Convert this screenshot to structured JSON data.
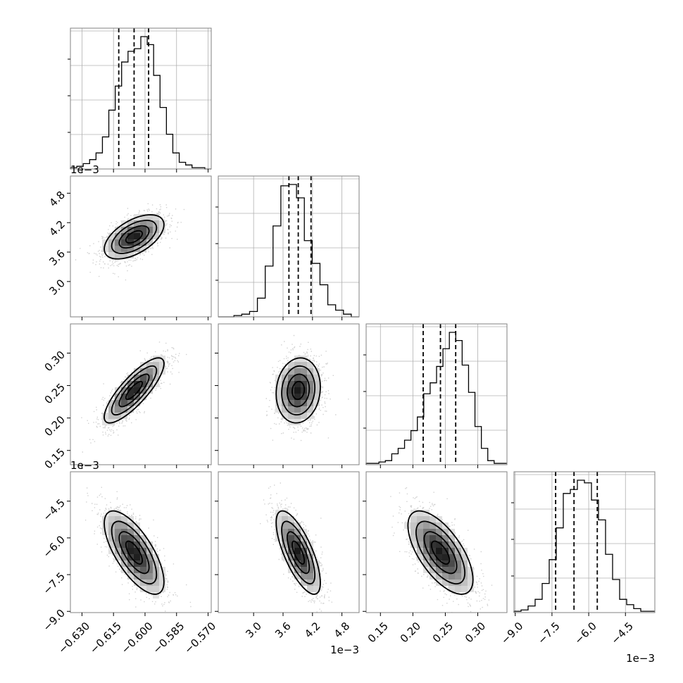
{
  "chart_data": {
    "type": "corner",
    "parameters": [
      {
        "range": [
          -0.6355,
          -0.5685
        ],
        "ticks": [
          -0.63,
          -0.615,
          -0.6,
          -0.585,
          -0.57
        ],
        "tick_labels": [
          "−0.630",
          "−0.615",
          "−0.600",
          "−0.585",
          "−0.570"
        ],
        "offset_label": "",
        "quantiles": [
          -0.6125,
          -0.6052,
          -0.5983
        ],
        "hist_counts": [
          1,
          2,
          4,
          7,
          12,
          24,
          44,
          62,
          80,
          88,
          90,
          99,
          93,
          70,
          46,
          26,
          12,
          5,
          3,
          1,
          1,
          0
        ]
      },
      {
        "range": [
          2.28,
          5.15
        ],
        "ticks": [
          3.0,
          3.6,
          4.2,
          4.8
        ],
        "tick_labels": [
          "3.0",
          "3.6",
          "4.2",
          "4.8"
        ],
        "offset_label": "1e−3",
        "quantiles": [
          3.72,
          3.91,
          4.17
        ],
        "hist_counts": [
          0,
          0,
          1,
          2,
          4,
          14,
          38,
          68,
          98,
          99,
          89,
          57,
          40,
          24,
          9,
          5,
          2,
          0
        ]
      },
      {
        "range": [
          0.128,
          0.345
        ],
        "ticks": [
          0.15,
          0.2,
          0.25,
          0.3
        ],
        "tick_labels": [
          "0.15",
          "0.20",
          "0.25",
          "0.30"
        ],
        "offset_label": "",
        "quantiles": [
          0.2159,
          0.2425,
          0.266
        ],
        "hist_counts": [
          1,
          1,
          2,
          3,
          8,
          12,
          18,
          25,
          35,
          52,
          60,
          72,
          85,
          97,
          91,
          73,
          53,
          28,
          12,
          3,
          1,
          1
        ]
      },
      {
        "range": [
          -9.05,
          -3.3
        ],
        "ticks": [
          -9.0,
          -7.5,
          -6.0,
          -4.5
        ],
        "tick_labels": [
          "−9.0",
          "−7.5",
          "−6.0",
          "−4.5"
        ],
        "offset_label": "1e−3",
        "quantiles": [
          -7.35,
          -6.6,
          -5.65
        ],
        "hist_counts": [
          1,
          2,
          5,
          10,
          22,
          40,
          64,
          90,
          93,
          100,
          98,
          85,
          70,
          44,
          25,
          10,
          6,
          3,
          1,
          1
        ]
      }
    ],
    "correlations": {
      "1,0": 0.55,
      "2,0": 0.82,
      "2,1": 0.1,
      "3,0": -0.7,
      "3,1": -0.72,
      "3,2": -0.65
    },
    "grid": true,
    "contour_levels": 4
  }
}
